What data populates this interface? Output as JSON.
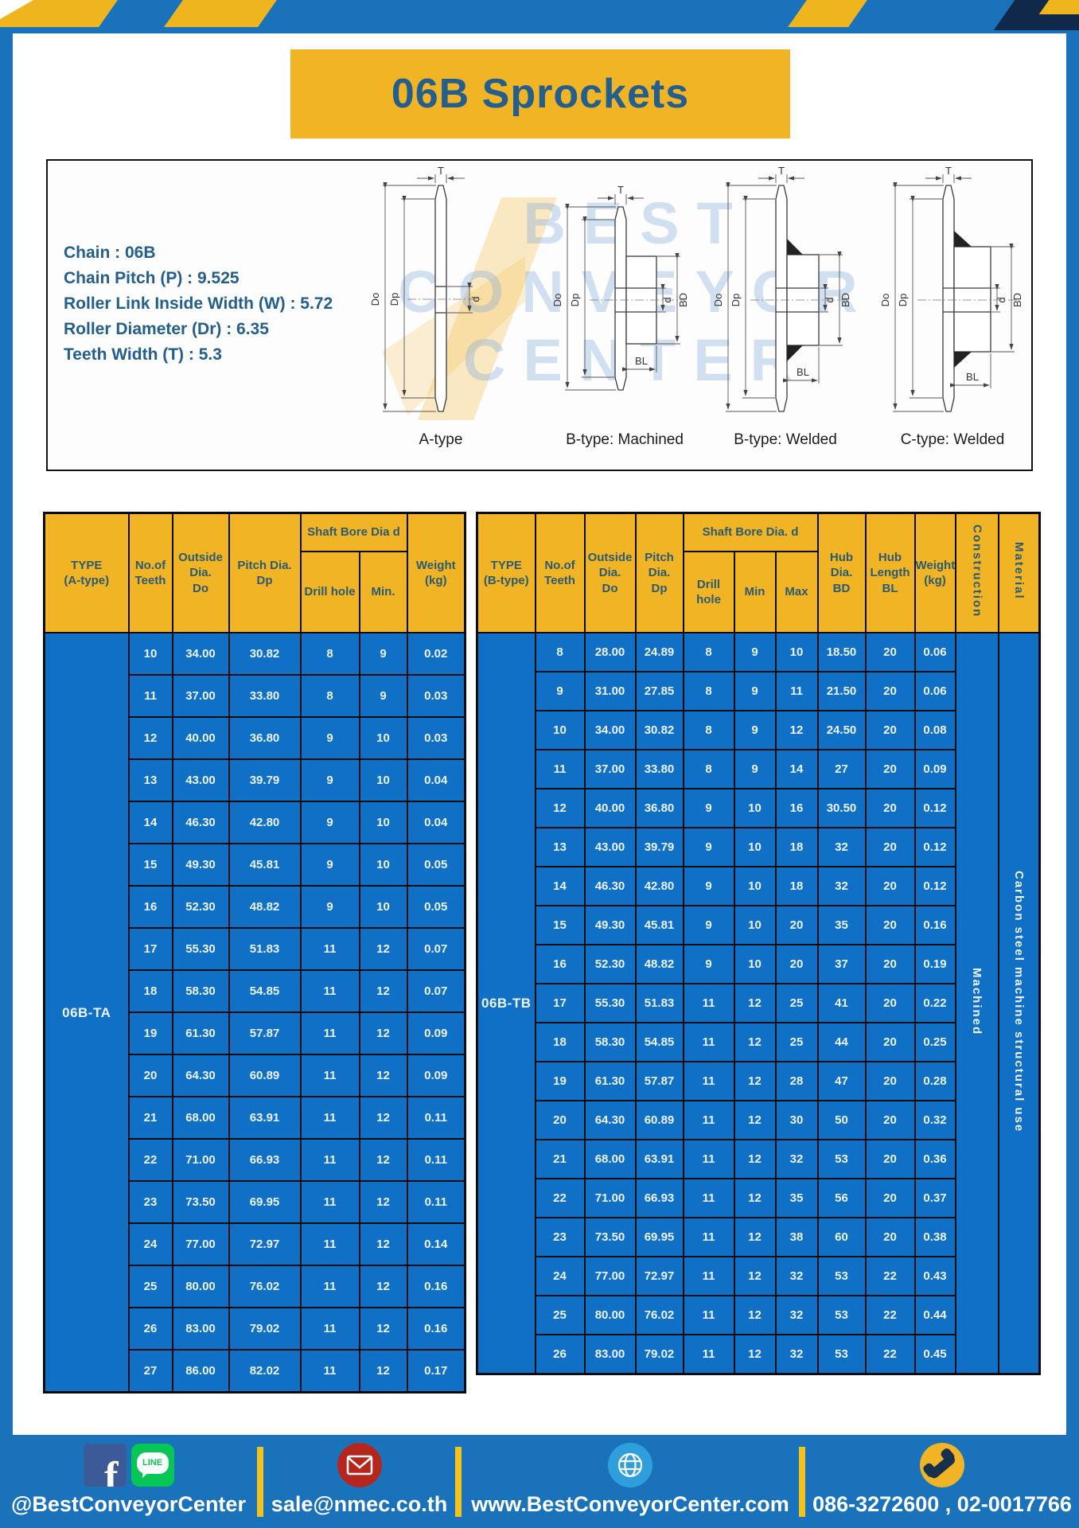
{
  "title": "06B Sprockets",
  "specs": [
    "Chain  : 06B",
    "Chain Pitch (P)  :  9.525",
    "Roller Link Inside Width (W)  :  5.72",
    "Roller Diameter (Dr)  : 6.35",
    "Teeth Width (T)  :  5.3"
  ],
  "watermark": {
    "line1": "BEST",
    "line2": "CONVEYOR",
    "line3": "CENTER"
  },
  "diagram": {
    "captions": [
      "A-type",
      "B-type: Machined",
      "B-type: Welded",
      "C-type: Welded"
    ],
    "dims": {
      "T": "T",
      "Do": "Do",
      "Dp": "Dp",
      "d": "d",
      "BD": "BD",
      "BL": "BL"
    }
  },
  "tables": {
    "a": {
      "type_label": "06B-TA",
      "headers": {
        "type": "TYPE\n(A-type)",
        "teeth": "No.of\nTeeth",
        "outside": "Outside\nDia.\nDo",
        "pitch": "Pitch Dia.\nDp",
        "shaft": "Shaft Bore Dia d",
        "drill": "Drill hole",
        "min": "Min.",
        "weight": "Weight\n(kg)"
      },
      "rows": [
        [
          "10",
          "34.00",
          "30.82",
          "8",
          "9",
          "0.02"
        ],
        [
          "11",
          "37.00",
          "33.80",
          "8",
          "9",
          "0.03"
        ],
        [
          "12",
          "40.00",
          "36.80",
          "9",
          "10",
          "0.03"
        ],
        [
          "13",
          "43.00",
          "39.79",
          "9",
          "10",
          "0.04"
        ],
        [
          "14",
          "46.30",
          "42.80",
          "9",
          "10",
          "0.04"
        ],
        [
          "15",
          "49.30",
          "45.81",
          "9",
          "10",
          "0.05"
        ],
        [
          "16",
          "52.30",
          "48.82",
          "9",
          "10",
          "0.05"
        ],
        [
          "17",
          "55.30",
          "51.83",
          "11",
          "12",
          "0.07"
        ],
        [
          "18",
          "58.30",
          "54.85",
          "11",
          "12",
          "0.07"
        ],
        [
          "19",
          "61.30",
          "57.87",
          "11",
          "12",
          "0.09"
        ],
        [
          "20",
          "64.30",
          "60.89",
          "11",
          "12",
          "0.09"
        ],
        [
          "21",
          "68.00",
          "63.91",
          "11",
          "12",
          "0.11"
        ],
        [
          "22",
          "71.00",
          "66.93",
          "11",
          "12",
          "0.11"
        ],
        [
          "23",
          "73.50",
          "69.95",
          "11",
          "12",
          "0.11"
        ],
        [
          "24",
          "77.00",
          "72.97",
          "11",
          "12",
          "0.14"
        ],
        [
          "25",
          "80.00",
          "76.02",
          "11",
          "12",
          "0.16"
        ],
        [
          "26",
          "83.00",
          "79.02",
          "11",
          "12",
          "0.16"
        ],
        [
          "27",
          "86.00",
          "82.02",
          "11",
          "12",
          "0.17"
        ]
      ]
    },
    "b": {
      "type_label": "06B-TB",
      "headers": {
        "type": "TYPE\n(B-type)",
        "teeth": "No.of\nTeeth",
        "outside": "Outside\nDia.\nDo",
        "pitch": "Pitch\nDia.\nDp",
        "shaft": "Shaft Bore Dia.  d",
        "drill": "Drill hole",
        "min": "Min",
        "max": "Max",
        "hub_dia": "Hub\nDia.\nBD",
        "hub_len": "Hub\nLength\nBL",
        "weight": "Weight\n(kg)",
        "construction": "Construction",
        "material": "Material"
      },
      "construction_value": "Machined",
      "material_value": "Carbon  steel  machine  structural  use",
      "rows": [
        [
          "8",
          "28.00",
          "24.89",
          "8",
          "9",
          "10",
          "18.50",
          "20",
          "0.06"
        ],
        [
          "9",
          "31.00",
          "27.85",
          "8",
          "9",
          "11",
          "21.50",
          "20",
          "0.06"
        ],
        [
          "10",
          "34.00",
          "30.82",
          "8",
          "9",
          "12",
          "24.50",
          "20",
          "0.08"
        ],
        [
          "11",
          "37.00",
          "33.80",
          "8",
          "9",
          "14",
          "27",
          "20",
          "0.09"
        ],
        [
          "12",
          "40.00",
          "36.80",
          "9",
          "10",
          "16",
          "30.50",
          "20",
          "0.12"
        ],
        [
          "13",
          "43.00",
          "39.79",
          "9",
          "10",
          "18",
          "32",
          "20",
          "0.12"
        ],
        [
          "14",
          "46.30",
          "42.80",
          "9",
          "10",
          "18",
          "32",
          "20",
          "0.12"
        ],
        [
          "15",
          "49.30",
          "45.81",
          "9",
          "10",
          "20",
          "35",
          "20",
          "0.16"
        ],
        [
          "16",
          "52.30",
          "48.82",
          "9",
          "10",
          "20",
          "37",
          "20",
          "0.19"
        ],
        [
          "17",
          "55.30",
          "51.83",
          "11",
          "12",
          "25",
          "41",
          "20",
          "0.22"
        ],
        [
          "18",
          "58.30",
          "54.85",
          "11",
          "12",
          "25",
          "44",
          "20",
          "0.25"
        ],
        [
          "19",
          "61.30",
          "57.87",
          "11",
          "12",
          "28",
          "47",
          "20",
          "0.28"
        ],
        [
          "20",
          "64.30",
          "60.89",
          "11",
          "12",
          "30",
          "50",
          "20",
          "0.32"
        ],
        [
          "21",
          "68.00",
          "63.91",
          "11",
          "12",
          "32",
          "53",
          "20",
          "0.36"
        ],
        [
          "22",
          "71.00",
          "66.93",
          "11",
          "12",
          "35",
          "56",
          "20",
          "0.37"
        ],
        [
          "23",
          "73.50",
          "69.95",
          "11",
          "12",
          "38",
          "60",
          "20",
          "0.38"
        ],
        [
          "24",
          "77.00",
          "72.97",
          "11",
          "12",
          "32",
          "53",
          "22",
          "0.43"
        ],
        [
          "25",
          "80.00",
          "76.02",
          "11",
          "12",
          "32",
          "53",
          "22",
          "0.44"
        ],
        [
          "26",
          "83.00",
          "79.02",
          "11",
          "12",
          "32",
          "53",
          "22",
          "0.45"
        ]
      ]
    }
  },
  "footer": {
    "social_label": "@BestConveyorCenter",
    "email": "sale@nmec.co.th",
    "website": "www.BestConveyorCenter.com",
    "phone": "086-3272600 , 02-0017766",
    "facebook_letter": "f",
    "line_badge": "LINE"
  },
  "colors": {
    "frame_blue": "#1a72ba",
    "cell_blue": "#0f70c5",
    "accent_yellow": "#f0b424",
    "title_blue": "#235e8e",
    "header_text": "#2b5a72",
    "border_black": "#0b0b12",
    "navy_corner": "#10284a",
    "line_green": "#06c755",
    "facebook_blue": "#3d5a98",
    "email_red": "#b5271d",
    "globe_blue": "#2f9fdc"
  }
}
